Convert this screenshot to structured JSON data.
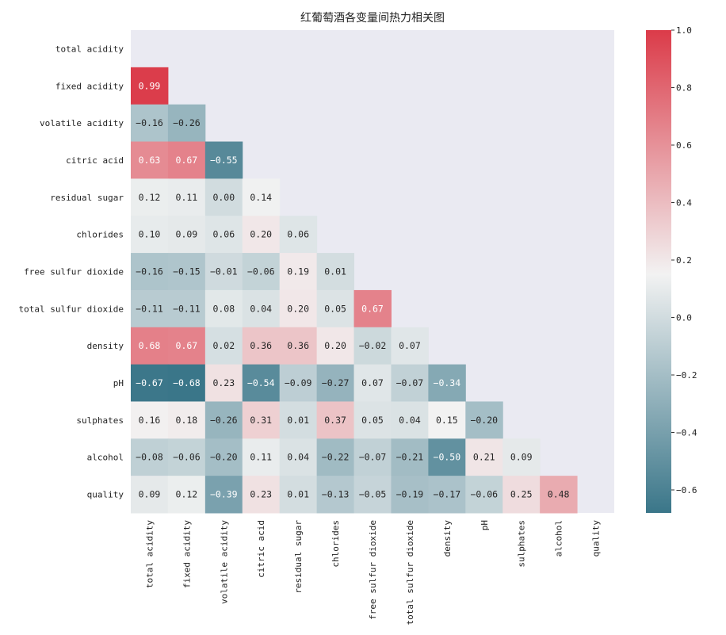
{
  "chart_data": {
    "type": "heatmap",
    "title": "红葡萄酒各变量间热力相关图",
    "xlabel": "",
    "ylabel": "",
    "grid": false,
    "mask": "upper-triangle-including-diagonal",
    "variables": [
      "total acidity",
      "fixed acidity",
      "volatile acidity",
      "citric acid",
      "residual sugar",
      "chlorides",
      "free sulfur dioxide",
      "total sulfur dioxide",
      "density",
      "pH",
      "sulphates",
      "alcohol",
      "quality"
    ],
    "rows": [
      [],
      [
        0.99
      ],
      [
        -0.16,
        -0.26
      ],
      [
        0.63,
        0.67,
        -0.55
      ],
      [
        0.12,
        0.11,
        0.0,
        0.14
      ],
      [
        0.1,
        0.09,
        0.06,
        0.2,
        0.06
      ],
      [
        -0.16,
        -0.15,
        -0.01,
        -0.06,
        0.19,
        0.01
      ],
      [
        -0.11,
        -0.11,
        0.08,
        0.04,
        0.2,
        0.05,
        0.67
      ],
      [
        0.68,
        0.67,
        0.02,
        0.36,
        0.36,
        0.2,
        -0.02,
        0.07
      ],
      [
        -0.67,
        -0.68,
        0.23,
        -0.54,
        -0.09,
        -0.27,
        0.07,
        -0.07,
        -0.34
      ],
      [
        0.16,
        0.18,
        -0.26,
        0.31,
        0.01,
        0.37,
        0.05,
        0.04,
        0.15,
        -0.2
      ],
      [
        -0.08,
        -0.06,
        -0.2,
        0.11,
        0.04,
        -0.22,
        -0.07,
        -0.21,
        -0.5,
        0.21,
        0.09
      ],
      [
        0.09,
        0.12,
        -0.39,
        0.23,
        0.01,
        -0.13,
        -0.05,
        -0.19,
        -0.17,
        -0.06,
        0.25,
        0.48
      ]
    ],
    "colorbar": {
      "range": [
        -0.68,
        1.0
      ],
      "center": 0.15,
      "ticks": [
        "1.0",
        "0.8",
        "0.6",
        "0.4",
        "0.2",
        "0.0",
        "−0.2",
        "−0.4",
        "−0.6"
      ],
      "tick_values": [
        1.0,
        0.8,
        0.6,
        0.4,
        0.2,
        0.0,
        -0.2,
        -0.4,
        -0.6
      ],
      "colormap": "diverging teal-white-red",
      "low_color": "#3a7689",
      "mid_color": "#f2f2f2",
      "high_color": "#db3b49"
    },
    "mask_background": "#eaeaf2"
  }
}
